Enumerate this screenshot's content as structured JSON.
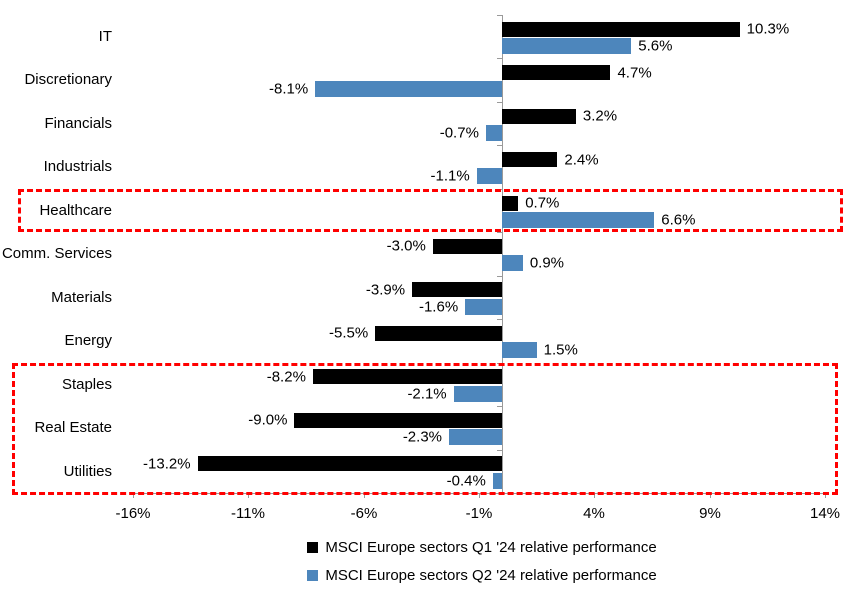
{
  "chart_data": {
    "type": "bar",
    "orientation": "horizontal",
    "categories": [
      "IT",
      "Discretionary",
      "Financials",
      "Industrials",
      "Healthcare",
      "Comm. Services",
      "Materials",
      "Energy",
      "Staples",
      "Real Estate",
      "Utilities"
    ],
    "series": [
      {
        "name": "MSCI Europe sectors Q1 '24 relative performance",
        "color": "#000000",
        "values": [
          10.3,
          4.7,
          3.2,
          2.4,
          0.7,
          -3.0,
          -3.9,
          -5.5,
          -8.2,
          -9.0,
          -13.2
        ],
        "labels": [
          "10.3%",
          "4.7%",
          "3.2%",
          "2.4%",
          "0.7%",
          "-3.0%",
          "-3.9%",
          "-5.5%",
          "-8.2%",
          "-9.0%",
          "-13.2%"
        ]
      },
      {
        "name": "MSCI Europe sectors Q2 '24 relative performance",
        "color": "#4d86bc",
        "values": [
          5.6,
          -8.1,
          -0.7,
          -1.1,
          6.6,
          0.9,
          -1.6,
          1.5,
          -2.1,
          -2.3,
          -0.4
        ],
        "labels": [
          "5.6%",
          "-8.1%",
          "-0.7%",
          "-1.1%",
          "6.6%",
          "0.9%",
          "-1.6%",
          "1.5%",
          "-2.1%",
          "-2.3%",
          "-0.4%"
        ]
      }
    ],
    "x_axis": {
      "min": -16,
      "max": 14,
      "tick_values": [
        -16,
        -11,
        -6,
        -1,
        4,
        9,
        14
      ],
      "tick_labels": [
        "-16%",
        "-11%",
        "-6%",
        "-1%",
        "4%",
        "9%",
        "14%"
      ]
    },
    "grid": false,
    "legend_position": "bottom",
    "legend_items": [
      "MSCI Europe sectors Q1 '24 relative performance",
      "MSCI Europe sectors Q2 '24 relative performance"
    ],
    "highlight_boxes": [
      {
        "categories": [
          "Healthcare"
        ],
        "color": "#ff0000",
        "style": "dashed"
      },
      {
        "categories": [
          "Staples",
          "Real Estate",
          "Utilities"
        ],
        "color": "#ff0000",
        "style": "dashed"
      }
    ]
  },
  "colors": {
    "series_q1": "#000000",
    "series_q2": "#4d86bc",
    "highlight": "#ff0000",
    "axis": "#9a9a9a"
  }
}
